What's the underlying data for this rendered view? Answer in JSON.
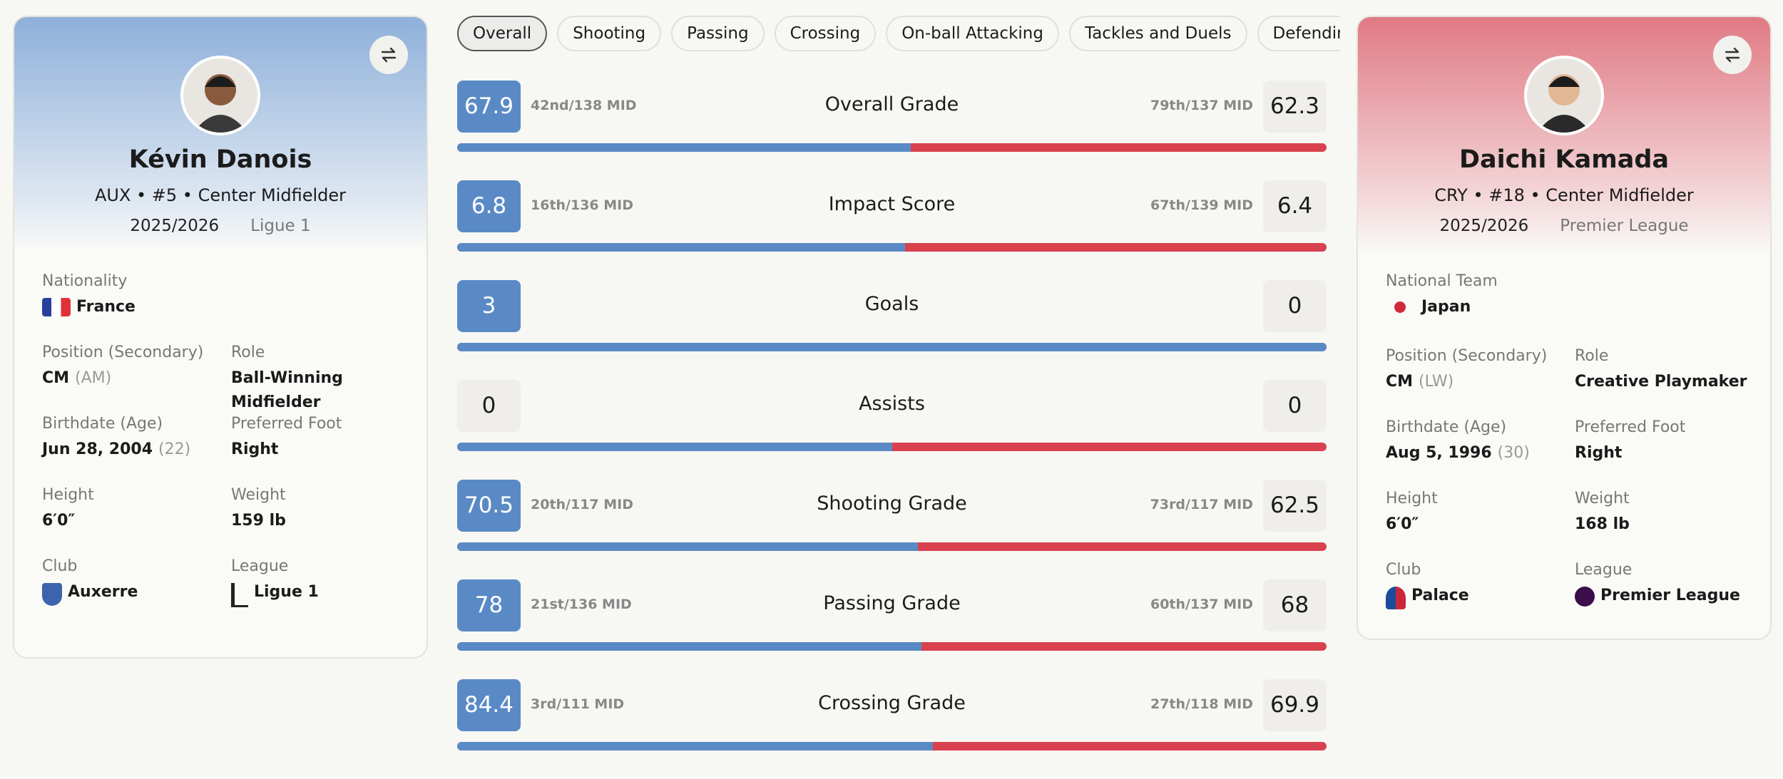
{
  "tabs": [
    "Overall",
    "Shooting",
    "Passing",
    "Crossing",
    "On-ball Attacking",
    "Tackles and Duels",
    "Defending"
  ],
  "players": [
    {
      "name": "Kévin Danois",
      "line": "AUX • #5 • Center Midfielder",
      "season": "2025/2026",
      "league_select": "Ligue 1",
      "details": [
        {
          "label": "Nationality",
          "value": "France"
        },
        {
          "label": "Position (Secondary)",
          "value": "CM",
          "secondary": "(AM)"
        },
        {
          "label": "Role",
          "value": "Ball-Winning Midfielder"
        },
        {
          "label": "Birthdate (Age)",
          "value": "Jun 28, 2004",
          "secondary": "(22)"
        },
        {
          "label": "Preferred Foot",
          "value": "Right"
        },
        {
          "label": "Height",
          "value": "6′0″"
        },
        {
          "label": "Weight",
          "value": "159 lb"
        },
        {
          "label": "Club",
          "value": "Auxerre"
        },
        {
          "label": "League",
          "value": "Ligue 1"
        }
      ]
    },
    {
      "name": "Daichi Kamada",
      "line": "CRY • #18 • Center Midfielder",
      "season": "2025/2026",
      "league_select": "Premier League",
      "details": [
        {
          "label": "National Team",
          "value": "Japan"
        },
        {
          "label": "Position (Secondary)",
          "value": "CM",
          "secondary": "(LW)"
        },
        {
          "label": "Role",
          "value": "Creative Playmaker"
        },
        {
          "label": "Birthdate (Age)",
          "value": "Aug 5, 1996",
          "secondary": "(30)"
        },
        {
          "label": "Preferred Foot",
          "value": "Right"
        },
        {
          "label": "Height",
          "value": "6′0″"
        },
        {
          "label": "Weight",
          "value": "168 lb"
        },
        {
          "label": "Club",
          "value": "Palace"
        },
        {
          "label": "League",
          "value": "Premier League"
        }
      ]
    }
  ],
  "metrics": [
    {
      "label": "Overall Grade",
      "left": {
        "value": 67.9,
        "rank": "42nd/138 MID"
      },
      "right": {
        "value": 62.3,
        "rank": "79th/137 MID"
      }
    },
    {
      "label": "Impact Score",
      "left": {
        "value": 6.8,
        "rank": "16th/136 MID"
      },
      "right": {
        "value": 6.4,
        "rank": "67th/139 MID"
      }
    },
    {
      "label": "Goals",
      "left": {
        "value": 3
      },
      "right": {
        "value": 0
      }
    },
    {
      "label": "Assists",
      "left": {
        "value": 0
      },
      "right": {
        "value": 0
      }
    },
    {
      "label": "Shooting Grade",
      "left": {
        "value": 70.5,
        "rank": "20th/117 MID"
      },
      "right": {
        "value": 62.5,
        "rank": "73rd/117 MID"
      }
    },
    {
      "label": "Passing Grade",
      "left": {
        "value": 78,
        "rank": "21st/136 MID"
      },
      "right": {
        "value": 68,
        "rank": "60th/137 MID"
      }
    },
    {
      "label": "Crossing Grade",
      "left": {
        "value": 84.4,
        "rank": "3rd/111 MID"
      },
      "right": {
        "value": 69.9,
        "rank": "27th/118 MID"
      }
    }
  ]
}
